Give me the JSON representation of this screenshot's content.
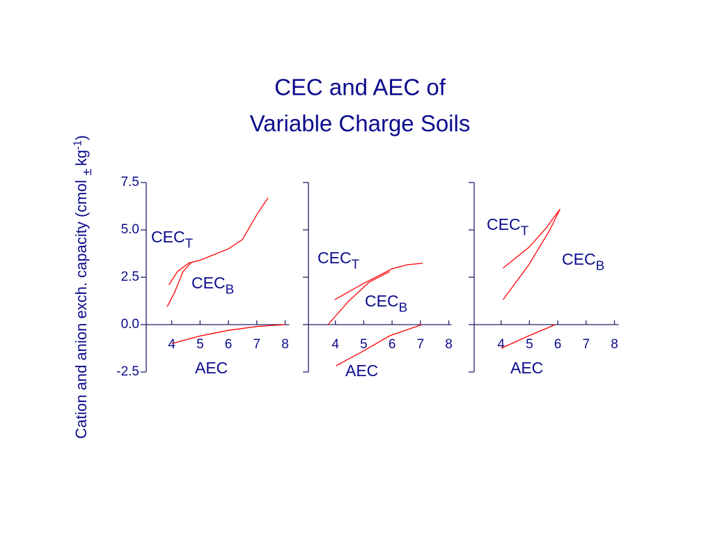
{
  "title": [
    "CEC and AEC of",
    "Variable Charge Soils"
  ],
  "y_label": [
    {
      "text": "Cation and anion exch. capacity (cmol "
    },
    {
      "sub": "±"
    },
    {
      "text": "kg"
    },
    {
      "sup": "-1"
    },
    {
      "text": ")"
    }
  ],
  "chart_data": [
    {
      "type": "line",
      "xlim": [
        3.1,
        8.15
      ],
      "ylim": [
        -2.5,
        7.5
      ],
      "xticks": [
        4,
        5,
        6,
        7,
        8
      ],
      "yticks": [
        {
          "value": 7.5,
          "label": "7.5"
        },
        {
          "value": 5,
          "label": "5.0"
        },
        {
          "value": 2.5,
          "label": "2.5"
        },
        {
          "value": 0,
          "label": "0.0"
        },
        {
          "value": -2.5,
          "label": "-2.5"
        }
      ],
      "ytick_labels": true,
      "series": [
        {
          "color": "#ff0000",
          "x": [
            3.9,
            4.2,
            4.6,
            5.0,
            5.5,
            6.0,
            6.5,
            7.0,
            7.4
          ],
          "values": [
            2.1,
            2.8,
            3.25,
            3.4,
            3.7,
            4.0,
            4.5,
            5.8,
            6.7
          ]
        },
        {
          "color": "#ff0000",
          "x": [
            3.84,
            4.1,
            4.4,
            4.7
          ],
          "values": [
            0.95,
            1.7,
            2.8,
            3.3
          ]
        },
        {
          "color": "#ff0000",
          "x": [
            4.0,
            5.0,
            6.0,
            7.0,
            8.0
          ],
          "values": [
            -1,
            -0.6,
            -0.3,
            -0.1,
            0
          ]
        }
      ],
      "annotations": [
        [
          {
            "text": "CEC"
          },
          {
            "sub": "T"
          }
        ],
        [
          {
            "text": "CEC"
          },
          {
            "sub": "B"
          }
        ],
        [
          {
            "text": "AEC"
          }
        ]
      ]
    },
    {
      "type": "line",
      "xlim": [
        3.05,
        8.1
      ],
      "ylim": [
        -2.5,
        7.5
      ],
      "xticks": [
        4,
        5,
        6,
        7,
        8
      ],
      "yticks": [
        7.5,
        5,
        2.5,
        0,
        -2.5
      ],
      "ytick_labels": false,
      "series": [
        {
          "color": "#ff0000",
          "x": [
            3.98,
            4.94,
            5.99,
            6.54,
            7.08
          ],
          "values": [
            1.32,
            2.13,
            2.94,
            3.16,
            3.24
          ]
        },
        {
          "color": "#ff0000",
          "x": [
            3.74,
            4.45,
            5.19,
            5.92
          ],
          "values": [
            0,
            1.21,
            2.24,
            2.8
          ]
        },
        {
          "color": "#ff0000",
          "x": [
            4.03,
            4.94,
            5.92,
            7.05
          ],
          "values": [
            -2.17,
            -1.43,
            -0.59,
            0
          ]
        }
      ],
      "annotations": [
        [
          {
            "text": "CEC"
          },
          {
            "sub": "T"
          }
        ],
        [
          {
            "text": "CEC"
          },
          {
            "sub": "B"
          }
        ],
        [
          {
            "text": "AEC"
          }
        ]
      ]
    },
    {
      "type": "line",
      "xlim": [
        3.05,
        8.15
      ],
      "ylim": [
        -2.5,
        7.5
      ],
      "xticks": [
        4,
        5,
        6,
        7,
        8
      ],
      "yticks": [
        7.5,
        5,
        2.5,
        0,
        -2.5
      ],
      "ytick_labels": false,
      "series": [
        {
          "color": "#ff0000",
          "x": [
            4.07,
            4.98,
            5.59,
            6.08
          ],
          "values": [
            2.98,
            4.08,
            5.1,
            6.1
          ]
        },
        {
          "color": "#ff0000",
          "x": [
            4.07,
            4.98,
            5.72,
            6.08
          ],
          "values": [
            1.32,
            3.16,
            5.0,
            6.1
          ]
        },
        {
          "color": "#ff0000",
          "x": [
            4.0,
            4.98,
            5.91
          ],
          "values": [
            -1.25,
            -0.59,
            0
          ]
        }
      ],
      "annotations": [
        [
          {
            "text": "CEC"
          },
          {
            "sub": "T"
          }
        ],
        [
          {
            "text": "CEC"
          },
          {
            "sub": "B"
          }
        ],
        [
          {
            "text": "AEC"
          }
        ]
      ]
    }
  ]
}
